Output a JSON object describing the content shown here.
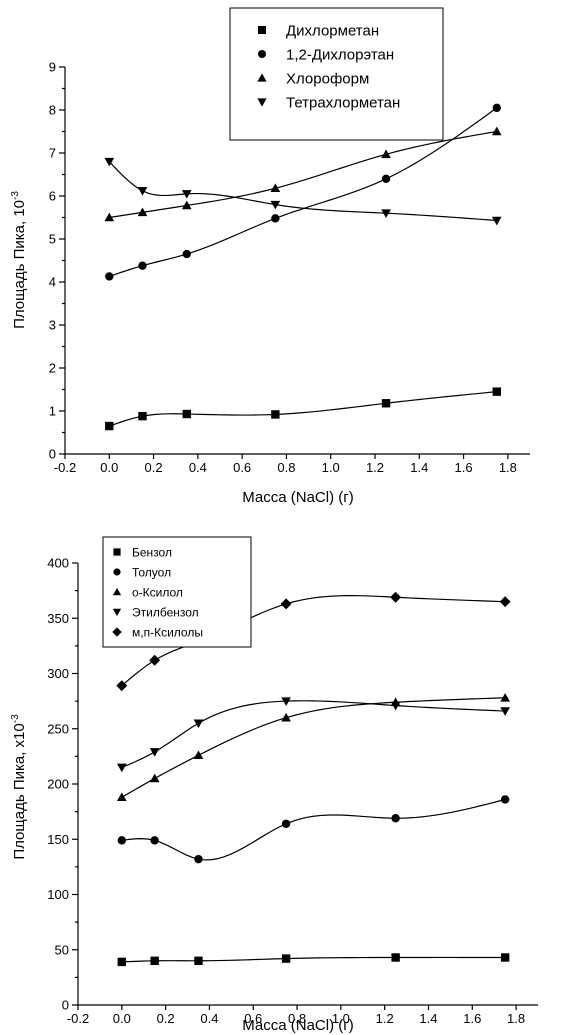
{
  "chart_data": [
    {
      "type": "scatter",
      "title": "",
      "xlabel": "Масса (NaCl) (г)",
      "ylabel": "Площадь Пика, 10",
      "ylabel_exp": "-3",
      "xlim": [
        -0.2,
        1.9
      ],
      "ylim": [
        0,
        9
      ],
      "xticks": [
        "-0.2",
        "0.0",
        "0.2",
        "0.4",
        "0.6",
        "0.8",
        "1.0",
        "1.2",
        "1.4",
        "1.6",
        "1.8"
      ],
      "yticks": [
        "0",
        "1",
        "2",
        "3",
        "4",
        "5",
        "6",
        "7",
        "8",
        "9"
      ],
      "x": [
        0.0,
        0.15,
        0.35,
        0.75,
        1.25,
        1.75
      ],
      "legend_position": "top-center",
      "series": [
        {
          "name": "Дихлорметан",
          "marker": "square",
          "values": [
            0.65,
            0.88,
            0.93,
            0.92,
            1.18,
            1.45
          ]
        },
        {
          "name": "1,2-Дихлорэтан",
          "marker": "circle",
          "values": [
            4.13,
            4.38,
            4.65,
            5.48,
            6.4,
            8.05
          ]
        },
        {
          "name": "Хлороформ",
          "marker": "triangle-up",
          "values": [
            5.5,
            5.62,
            5.78,
            6.18,
            6.97,
            7.5
          ]
        },
        {
          "name": "Тетрахлорметан",
          "marker": "triangle-down",
          "values": [
            6.8,
            6.12,
            6.05,
            5.8,
            5.6,
            5.43
          ]
        }
      ]
    },
    {
      "type": "scatter",
      "title": "",
      "xlabel": "Масса (NaCl) (г)",
      "ylabel": "Площадь Пика, x10",
      "ylabel_exp": "-3",
      "xlim": [
        -0.2,
        1.9
      ],
      "ylim": [
        0,
        400
      ],
      "xticks": [
        "-0.2",
        "0.0",
        "0.2",
        "0.4",
        "0.6",
        "0.8",
        "1.0",
        "1.2",
        "1.4",
        "1.6",
        "1.8"
      ],
      "yticks": [
        "0",
        "50",
        "100",
        "150",
        "200",
        "250",
        "300",
        "350",
        "400"
      ],
      "x": [
        0.0,
        0.15,
        0.35,
        0.75,
        1.25,
        1.75
      ],
      "legend_position": "top-left",
      "series": [
        {
          "name": "Бензол",
          "marker": "square",
          "values": [
            39,
            40,
            40,
            42,
            43,
            43
          ]
        },
        {
          "name": "Толуол",
          "marker": "circle",
          "values": [
            149,
            149,
            132,
            164,
            169,
            186
          ]
        },
        {
          "name": "о-Ксилол",
          "marker": "triangle-up",
          "values": [
            188,
            205,
            226,
            260,
            274,
            278
          ]
        },
        {
          "name": "Этилбензол",
          "marker": "triangle-down",
          "values": [
            215,
            229,
            255,
            275,
            271,
            266
          ]
        },
        {
          "name": "м,п-Ксилолы",
          "marker": "diamond",
          "values": [
            289,
            312,
            329,
            363,
            369,
            365
          ]
        }
      ]
    }
  ]
}
